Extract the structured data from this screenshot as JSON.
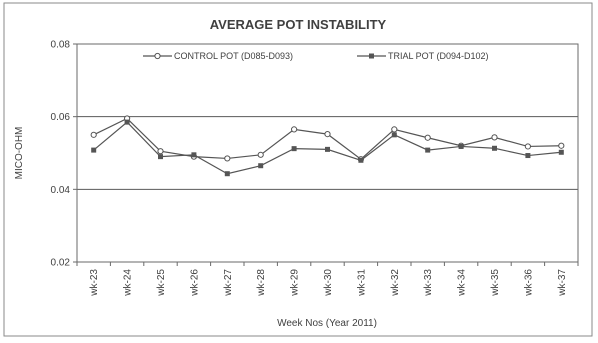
{
  "chart_data": {
    "type": "line",
    "title": "AVERAGE POT INSTABILITY",
    "xlabel": "Week Nos (Year 2011)",
    "ylabel": "MICO-OHM",
    "categories": [
      "wk-23",
      "wk-24",
      "wk-25",
      "wk-26",
      "wk-27",
      "wk-28",
      "wk-29",
      "wk-30",
      "wk-31",
      "wk-32",
      "wk-33",
      "wk-34",
      "wk-35",
      "wk-36",
      "wk-37"
    ],
    "yticks": [
      "0.02",
      "0.04",
      "0.06",
      "0.08"
    ],
    "ylim": [
      0.02,
      0.08
    ],
    "grid": "horizontal",
    "legend_position": "top",
    "series": [
      {
        "name": "CONTROL POT (D085-D093)",
        "color": "#555555",
        "marker": "circle-open",
        "values": [
          0.055,
          0.0595,
          0.0505,
          0.049,
          0.0485,
          0.0495,
          0.0565,
          0.0552,
          0.0483,
          0.0565,
          0.0542,
          0.052,
          0.0543,
          0.0518,
          0.052
        ]
      },
      {
        "name": "TRIAL POT (D094-D102)",
        "color": "#555555",
        "marker": "square-filled",
        "values": [
          0.0508,
          0.0585,
          0.049,
          0.0495,
          0.0443,
          0.0465,
          0.0512,
          0.051,
          0.048,
          0.055,
          0.0508,
          0.0518,
          0.0513,
          0.0493,
          0.0502
        ]
      }
    ]
  }
}
